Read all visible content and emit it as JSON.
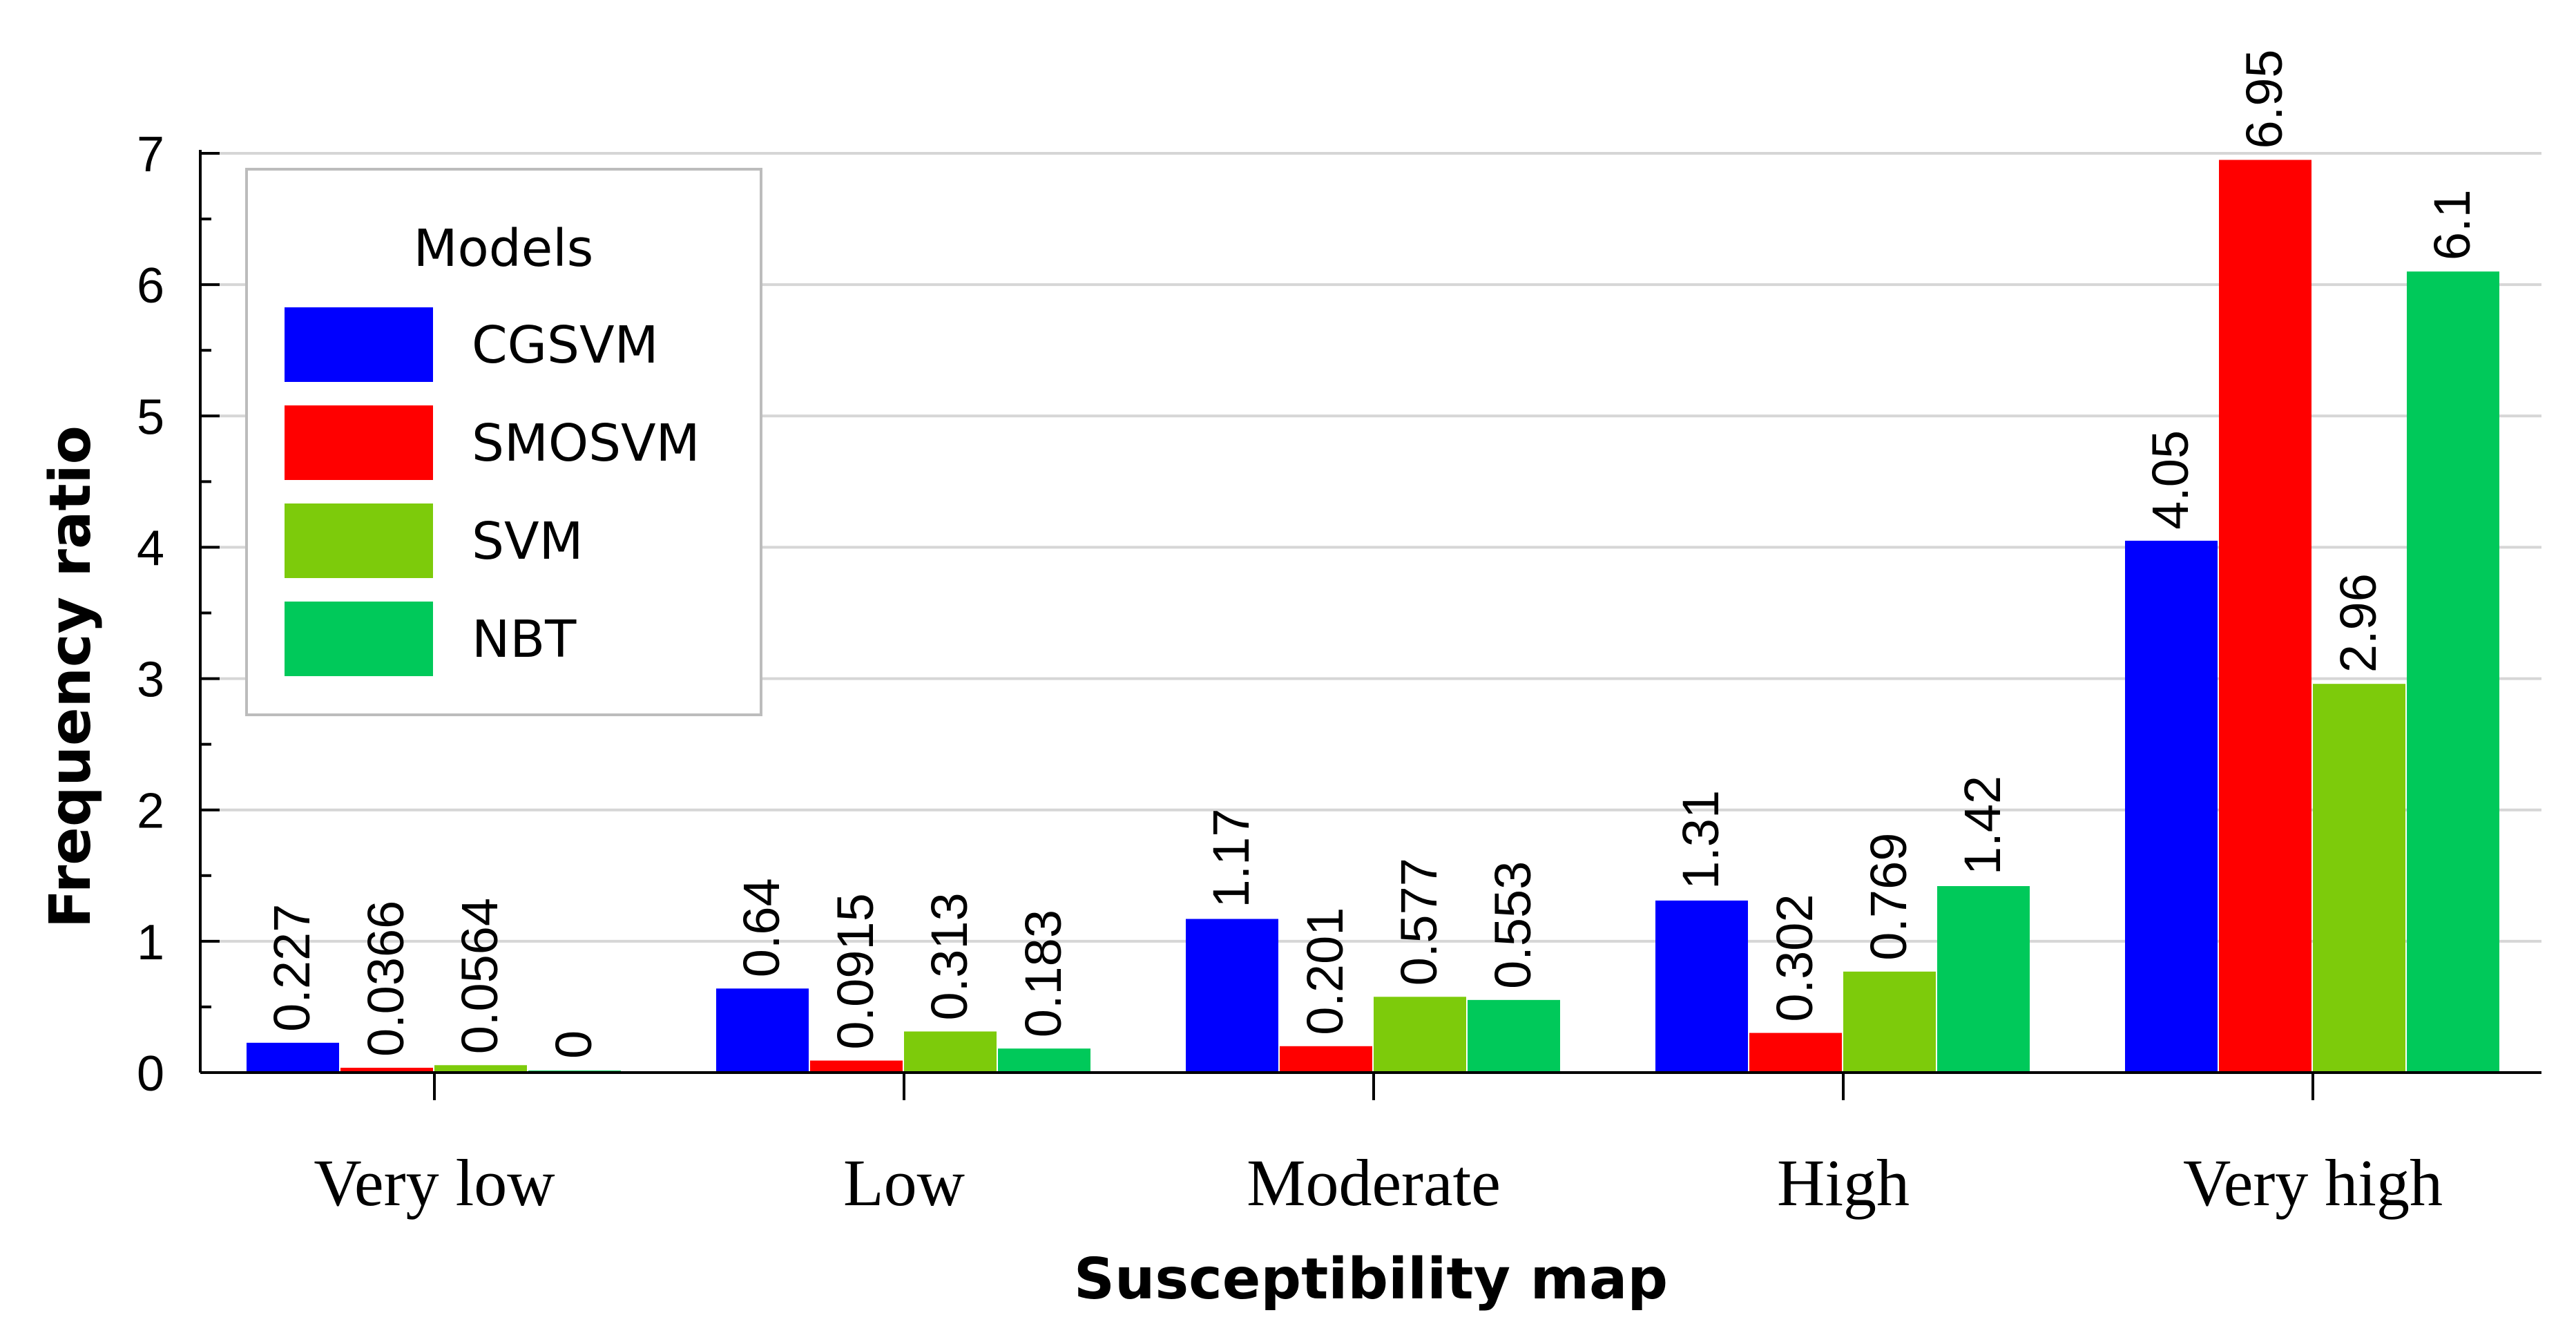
{
  "chart_data": {
    "type": "bar",
    "title": "",
    "xlabel": "Susceptibility map",
    "ylabel": "Frequency ratio",
    "ylim": [
      0,
      7
    ],
    "yticks": [
      0,
      1,
      2,
      3,
      4,
      5,
      6,
      7
    ],
    "grid": true,
    "legend": {
      "title": "Models",
      "placement": "top-left"
    },
    "categories": [
      "Very low",
      "Low",
      "Moderate",
      "High",
      "Very high"
    ],
    "series": [
      {
        "name": "CGSVM",
        "color": "#0000FF",
        "values": [
          0.227,
          0.64,
          1.17,
          1.31,
          4.05
        ],
        "labels": [
          "0.227",
          "0.64",
          "1.17",
          "1.31",
          "4.05"
        ]
      },
      {
        "name": "SMOSVM",
        "color": "#FF0000",
        "values": [
          0.0366,
          0.0915,
          0.201,
          0.302,
          6.95
        ],
        "labels": [
          "0.0366",
          "0.0915",
          "0.201",
          "0.302",
          "6.95"
        ]
      },
      {
        "name": "SVM",
        "color": "#7DCB0B",
        "values": [
          0.0564,
          0.313,
          0.577,
          0.769,
          2.96
        ],
        "labels": [
          "0.0564",
          "0.313",
          "0.577",
          "0.769",
          "2.96"
        ]
      },
      {
        "name": "NBT",
        "color": "#00C95A",
        "values": [
          0,
          0.183,
          0.553,
          1.42,
          6.1
        ],
        "labels": [
          "0",
          "0.183",
          "0.553",
          "1.42",
          "6.1"
        ]
      }
    ]
  }
}
